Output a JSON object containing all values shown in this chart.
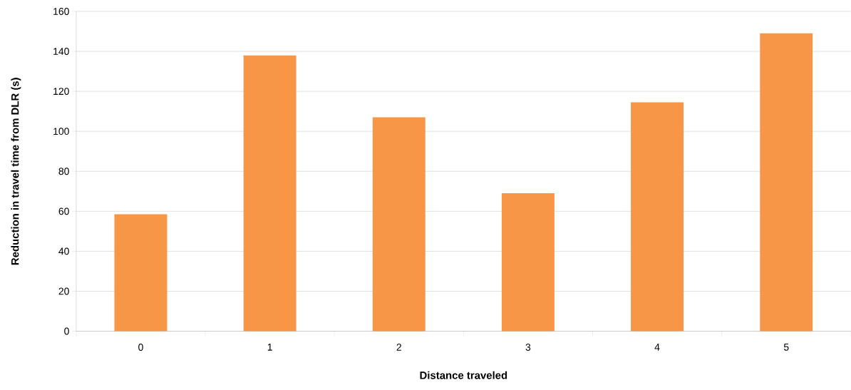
{
  "chart_data": {
    "type": "bar",
    "xlabel": "Distance traveled",
    "ylabel": "Reduction in travel time from DLR (s)",
    "categories": [
      "0",
      "1",
      "2",
      "3",
      "4",
      "5"
    ],
    "values": [
      58.5,
      138,
      107,
      69,
      114.5,
      149
    ],
    "color": "#f79646",
    "ylim": [
      0,
      160
    ],
    "yticks": [
      0,
      20,
      40,
      60,
      80,
      100,
      120,
      140,
      160
    ],
    "grid": "y"
  }
}
